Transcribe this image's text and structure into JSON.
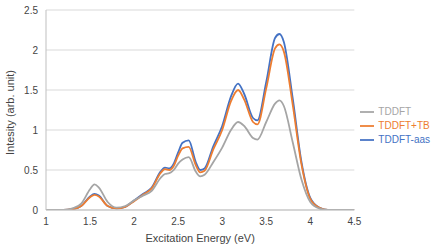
{
  "chart_data": {
    "type": "line",
    "x_label": "Excitation Energy (eV)",
    "y_label": "Intesity (arb. unit)",
    "x": [
      1,
      1.2,
      1.3,
      1.4,
      1.5,
      1.55,
      1.6,
      1.7,
      1.8,
      1.9,
      2,
      2.1,
      2.2,
      2.3,
      2.35,
      2.4,
      2.45,
      2.5,
      2.55,
      2.62,
      2.7,
      2.75,
      2.8,
      2.9,
      3,
      3.1,
      3.18,
      3.25,
      3.35,
      3.4,
      3.5,
      3.6,
      3.65,
      3.7,
      3.8,
      3.9,
      4,
      4.1,
      4.2,
      4.5
    ],
    "series": [
      {
        "name": "TDDFT-aas",
        "color": "#4472c4",
        "values": [
          0,
          0,
          0.01,
          0.05,
          0.17,
          0.2,
          0.18,
          0.05,
          0.02,
          0.04,
          0.12,
          0.2,
          0.28,
          0.48,
          0.53,
          0.52,
          0.58,
          0.72,
          0.84,
          0.87,
          0.6,
          0.5,
          0.52,
          0.8,
          1.05,
          1.42,
          1.58,
          1.45,
          1.15,
          1.12,
          1.6,
          2.15,
          2.2,
          2.1,
          1.4,
          0.6,
          0.15,
          0.03,
          0,
          0
        ]
      },
      {
        "name": "TDDFT+TB",
        "color": "#ed7d31",
        "values": [
          0,
          0,
          0.01,
          0.05,
          0.16,
          0.19,
          0.17,
          0.05,
          0.02,
          0.04,
          0.11,
          0.19,
          0.27,
          0.46,
          0.51,
          0.5,
          0.55,
          0.68,
          0.77,
          0.79,
          0.56,
          0.47,
          0.49,
          0.76,
          1.0,
          1.36,
          1.5,
          1.38,
          1.1,
          1.07,
          1.52,
          2.02,
          2.07,
          1.98,
          1.32,
          0.57,
          0.14,
          0.03,
          0,
          0
        ]
      },
      {
        "name": "TDDFT",
        "color": "#a5a5a5",
        "values": [
          0,
          0,
          0.02,
          0.08,
          0.26,
          0.32,
          0.28,
          0.1,
          0.03,
          0.05,
          0.12,
          0.18,
          0.24,
          0.4,
          0.45,
          0.46,
          0.5,
          0.58,
          0.63,
          0.66,
          0.48,
          0.42,
          0.44,
          0.6,
          0.78,
          1.0,
          1.1,
          1.05,
          0.9,
          0.88,
          1.1,
          1.33,
          1.37,
          1.3,
          0.85,
          0.38,
          0.1,
          0.02,
          0,
          0
        ]
      }
    ],
    "xlim": [
      1,
      4.5
    ],
    "xticks": [
      1,
      1.5,
      2,
      2.5,
      3,
      3.5,
      4,
      4.5
    ],
    "ylim": [
      0,
      2.5
    ],
    "yticks": [
      0,
      0.5,
      1,
      1.5,
      2,
      2.5
    ],
    "grid": true,
    "legend": "right"
  }
}
